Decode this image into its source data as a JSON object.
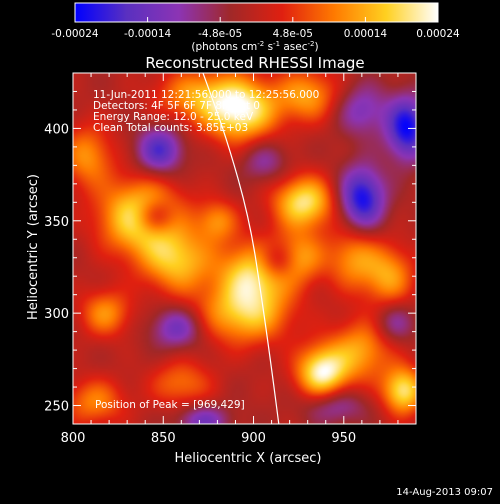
{
  "colorbar": {
    "ticks": [
      "-0.00024",
      "-0.00014",
      "-4.8e-05",
      "4.8e-05",
      "0.00014",
      "0.00024"
    ],
    "units_main": "(photons cm",
    "units_sup1": "-2",
    "units_mid": " s",
    "units_sup2": "-1",
    "units_end": " asec",
    "units_sup3": "-2",
    "units_close": ")"
  },
  "chart_data": {
    "type": "heatmap",
    "title": "Reconstructed RHESSI Image",
    "xlabel": "Heliocentric X (arcsec)",
    "ylabel": "Heliocentric Y (arcsec)",
    "xlim": [
      800,
      990
    ],
    "ylim": [
      240,
      430
    ],
    "xticks": [
      800,
      850,
      900,
      950
    ],
    "yticks": [
      250,
      300,
      350,
      400
    ],
    "zlim": [
      -0.00024,
      0.00024
    ],
    "colormap": [
      "#0000ff",
      "#5a30c0",
      "#8c34b4",
      "#a02828",
      "#e02010",
      "#ff7a00",
      "#ffd020",
      "#ffffff"
    ],
    "blobs": [
      {
        "x": 838,
        "y": 352,
        "sx": 16,
        "sy": 14,
        "a": 1.0
      },
      {
        "x": 858,
        "y": 328,
        "sx": 14,
        "sy": 12,
        "a": 0.7
      },
      {
        "x": 893,
        "y": 410,
        "sx": 14,
        "sy": 12,
        "a": 1.0
      },
      {
        "x": 930,
        "y": 418,
        "sx": 12,
        "sy": 10,
        "a": 0.6
      },
      {
        "x": 868,
        "y": 418,
        "sx": 16,
        "sy": 10,
        "a": 0.55
      },
      {
        "x": 900,
        "y": 322,
        "sx": 13,
        "sy": 12,
        "a": 0.8
      },
      {
        "x": 895,
        "y": 300,
        "sx": 18,
        "sy": 12,
        "a": 0.75
      },
      {
        "x": 928,
        "y": 360,
        "sx": 12,
        "sy": 10,
        "a": 0.9
      },
      {
        "x": 925,
        "y": 330,
        "sx": 10,
        "sy": 10,
        "a": 0.6
      },
      {
        "x": 938,
        "y": 268,
        "sx": 10,
        "sy": 10,
        "a": 1.0
      },
      {
        "x": 960,
        "y": 280,
        "sx": 12,
        "sy": 12,
        "a": 0.6
      },
      {
        "x": 955,
        "y": 330,
        "sx": 10,
        "sy": 12,
        "a": 0.55
      },
      {
        "x": 975,
        "y": 320,
        "sx": 10,
        "sy": 12,
        "a": 0.6
      },
      {
        "x": 983,
        "y": 258,
        "sx": 8,
        "sy": 9,
        "a": 0.9
      },
      {
        "x": 818,
        "y": 300,
        "sx": 10,
        "sy": 9,
        "a": 0.55
      },
      {
        "x": 808,
        "y": 385,
        "sx": 10,
        "sy": 12,
        "a": 0.55
      },
      {
        "x": 812,
        "y": 252,
        "sx": 12,
        "sy": 9,
        "a": 0.5
      },
      {
        "x": 860,
        "y": 262,
        "sx": 12,
        "sy": 9,
        "a": 0.45
      },
      {
        "x": 880,
        "y": 350,
        "sx": 8,
        "sy": 8,
        "a": 0.5
      },
      {
        "x": 848,
        "y": 388,
        "sx": 9,
        "sy": 9,
        "a": -0.7
      },
      {
        "x": 845,
        "y": 352,
        "sx": 8,
        "sy": 7,
        "a": -0.6
      },
      {
        "x": 913,
        "y": 328,
        "sx": 8,
        "sy": 7,
        "a": -0.5
      },
      {
        "x": 960,
        "y": 362,
        "sx": 9,
        "sy": 12,
        "a": -0.9
      },
      {
        "x": 985,
        "y": 400,
        "sx": 8,
        "sy": 12,
        "a": -0.9
      },
      {
        "x": 960,
        "y": 410,
        "sx": 10,
        "sy": 10,
        "a": -0.45
      },
      {
        "x": 858,
        "y": 292,
        "sx": 10,
        "sy": 8,
        "a": -0.55
      },
      {
        "x": 872,
        "y": 242,
        "sx": 10,
        "sy": 6,
        "a": -0.5
      },
      {
        "x": 945,
        "y": 250,
        "sx": 12,
        "sy": 7,
        "a": -0.4
      },
      {
        "x": 978,
        "y": 295,
        "sx": 8,
        "sy": 8,
        "a": -0.4
      },
      {
        "x": 906,
        "y": 382,
        "sx": 9,
        "sy": 8,
        "a": -0.35
      }
    ],
    "limb_curve": [
      [
        872,
        430
      ],
      [
        885,
        395
      ],
      [
        898,
        350
      ],
      [
        905,
        305
      ],
      [
        910,
        270
      ],
      [
        914,
        240
      ]
    ],
    "annotations": {
      "time_range": "11-Jun-2011 12:21:56.000 to 12:25:56.000",
      "detectors": "Detectors: 4F 5F 6F 7F 8F, Att 0",
      "energy": "Energy Range: 12.0 - 25.0 keV",
      "method": "Clean     Total counts: 3.85E+03",
      "peak": "Position of Peak = [969,429]"
    },
    "footer_date": "14-Aug-2013 09:07"
  }
}
